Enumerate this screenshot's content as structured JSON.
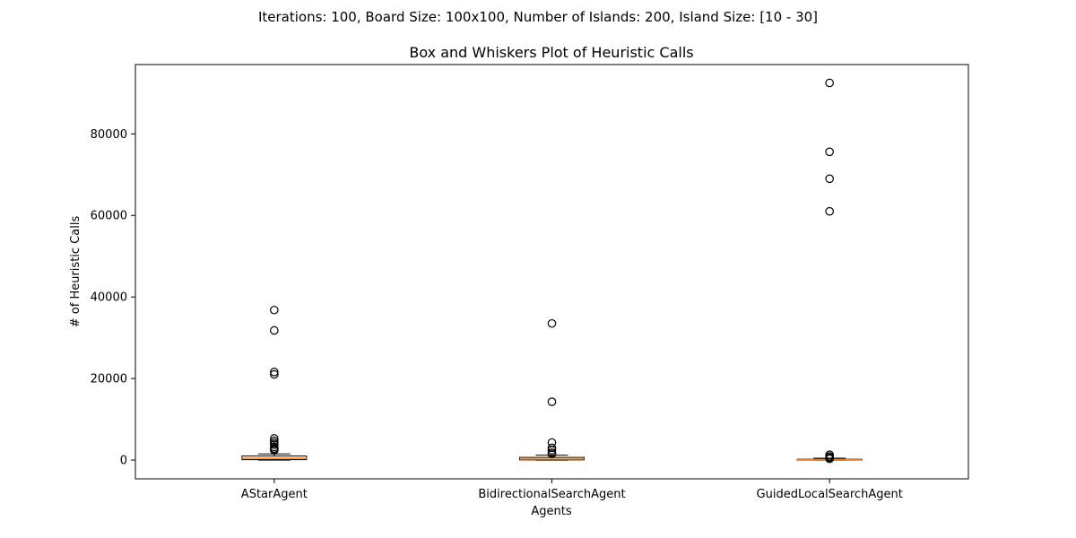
{
  "chart_data": {
    "type": "boxplot",
    "suptitle": "Iterations: 100, Board Size: 100x100, Number of Islands: 200, Island Size: [10 - 30]",
    "title": "Box and Whiskers Plot of Heuristic Calls",
    "xlabel": "Agents",
    "ylabel": "# of Heuristic Calls",
    "ylim": [
      -4600,
      97000
    ],
    "yticks": [
      0,
      20000,
      40000,
      60000,
      80000
    ],
    "ytick_labels": [
      "0",
      "20000",
      "40000",
      "60000",
      "80000"
    ],
    "grid": false,
    "categories": [
      "AStarAgent",
      "BidirectionalSearchAgent",
      "GuidedLocalSearchAgent"
    ],
    "boxes": [
      {
        "name": "AStarAgent",
        "whisker_low": 0,
        "q1": 100,
        "median": 450,
        "q3": 1000,
        "whisker_high": 1500,
        "fliers": [
          36800,
          31800,
          21600,
          21000,
          5300,
          4700,
          4200,
          3800,
          3200,
          2800,
          2600,
          2400
        ]
      },
      {
        "name": "BidirectionalSearchAgent",
        "whisker_low": 0,
        "q1": 50,
        "median": 250,
        "q3": 650,
        "whisker_high": 1200,
        "fliers": [
          33500,
          14300,
          4300,
          3000,
          2400,
          1800,
          1500
        ]
      },
      {
        "name": "GuidedLocalSearchAgent",
        "whisker_low": 0,
        "q1": 20,
        "median": 80,
        "q3": 200,
        "whisker_high": 450,
        "fliers": [
          92500,
          75600,
          69000,
          61000,
          1300,
          900,
          600,
          300
        ]
      }
    ],
    "colors": {
      "median": "#ff7f0e",
      "box_edge": "#000000",
      "flier_edge": "#000000",
      "axes": "#000000"
    }
  }
}
